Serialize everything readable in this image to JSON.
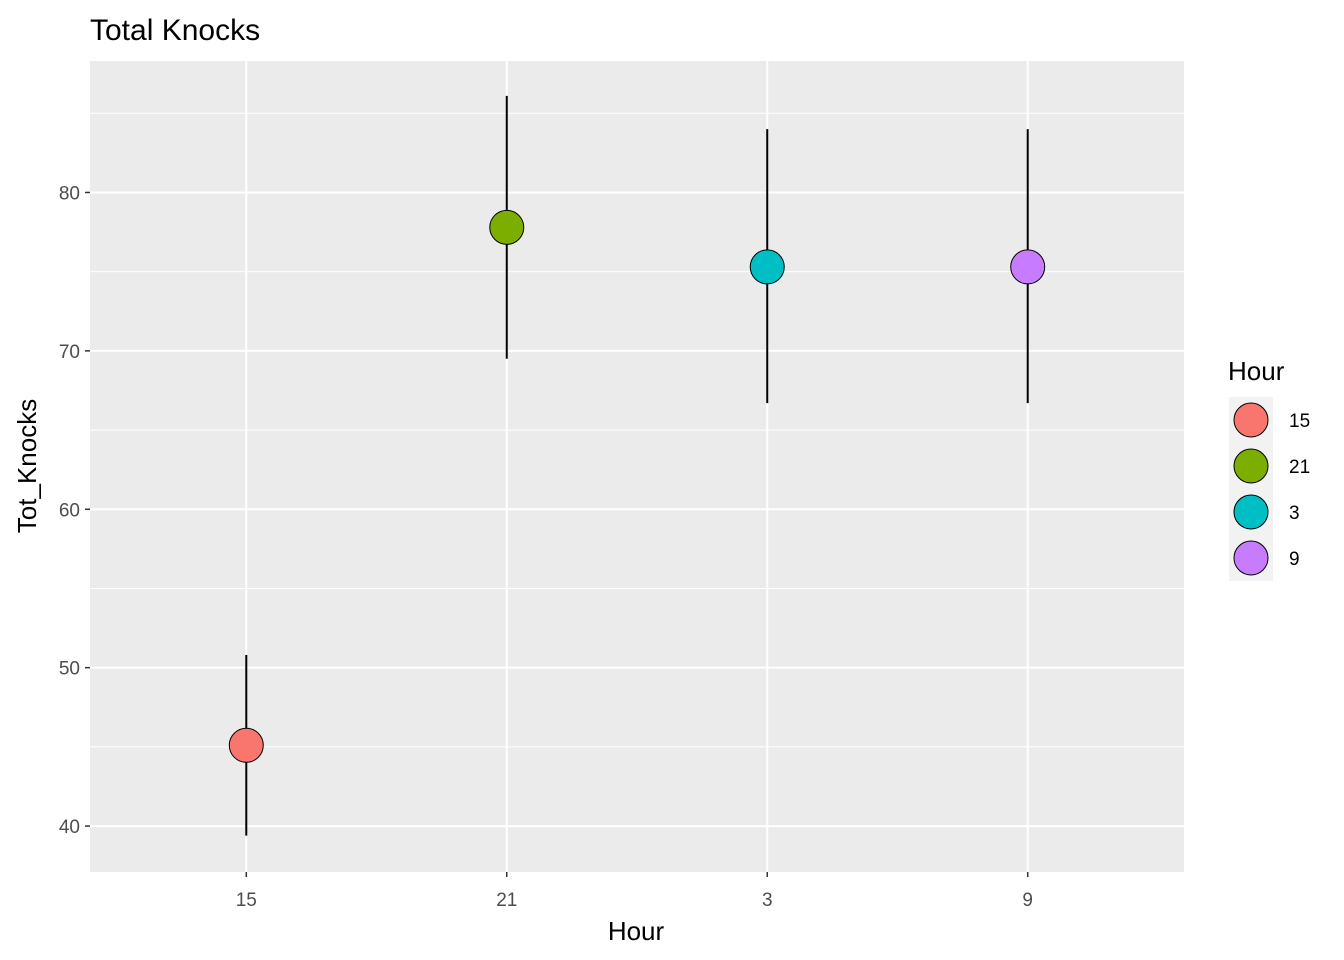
{
  "chart_data": {
    "type": "scatter",
    "title": "Total Knocks",
    "xlabel": "Hour",
    "ylabel": "Tot_Knocks",
    "categories": [
      "15",
      "21",
      "3",
      "9"
    ],
    "values": [
      45.1,
      77.8,
      75.3,
      75.3
    ],
    "error_low": [
      39.4,
      69.5,
      66.7,
      66.7
    ],
    "error_high": [
      50.8,
      86.1,
      84.0,
      84.0
    ],
    "ylim": [
      37.1,
      88.3
    ],
    "yticks": [
      40,
      50,
      60,
      70,
      80
    ],
    "grid": true,
    "legend": {
      "title": "Hour",
      "placement": "right",
      "entries": [
        "15",
        "21",
        "3",
        "9"
      ]
    },
    "colors": [
      "#F8766D",
      "#7CAE00",
      "#00BFC4",
      "#C77CFF"
    ],
    "panel_background": "#EBEBEB",
    "grid_color": "#FFFFFF",
    "errorbar_color": "#000000"
  }
}
